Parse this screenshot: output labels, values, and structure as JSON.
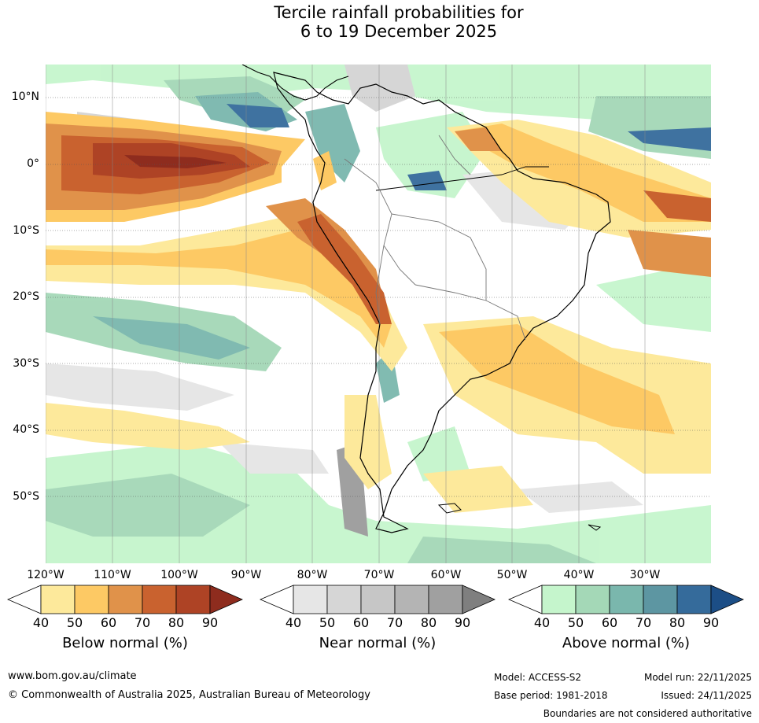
{
  "title_line1": "Tercile rainfall probabilities for",
  "title_line2": "6 to 19 December 2025",
  "latitude_labels": [
    "10°N",
    "0°",
    "10°S",
    "20°S",
    "30°S",
    "40°S",
    "50°S"
  ],
  "longitude_labels": [
    "120°W",
    "110°W",
    "100°W",
    "90°W",
    "80°W",
    "70°W",
    "60°W",
    "50°W",
    "40°W",
    "30°W"
  ],
  "legends": [
    {
      "title": "Below normal (%)",
      "ticks": [
        "40",
        "50",
        "60",
        "70",
        "80",
        "90"
      ],
      "colors": [
        "#ffffff",
        "#fde99b",
        "#fdc964",
        "#e0924a",
        "#c9622f",
        "#ae4325",
        "#8e2c1e"
      ]
    },
    {
      "title": "Near normal (%)",
      "ticks": [
        "40",
        "50",
        "60",
        "70",
        "80",
        "90"
      ],
      "colors": [
        "#ffffff",
        "#e6e6e6",
        "#d6d6d6",
        "#c6c6c6",
        "#b4b4b4",
        "#a0a0a0",
        "#7f7f7f"
      ]
    },
    {
      "title": "Above normal (%)",
      "ticks": [
        "40",
        "50",
        "60",
        "70",
        "80",
        "90"
      ],
      "colors": [
        "#ffffff",
        "#c5f5cc",
        "#a4d8b7",
        "#7ab7ad",
        "#5d96a2",
        "#356b9b",
        "#1c4e86"
      ]
    }
  ],
  "footer": {
    "website": "www.bom.gov.au/climate",
    "copyright": "© Commonwealth of Australia 2025, Australian Bureau of Meteorology",
    "model": "Model: ACCESS-S2",
    "model_run": "Model run: 22/11/2025",
    "base_period": "Base period: 1981-2018",
    "issued": "Issued: 24/11/2025",
    "disclaimer": "Boundaries are not considered authoritative"
  }
}
